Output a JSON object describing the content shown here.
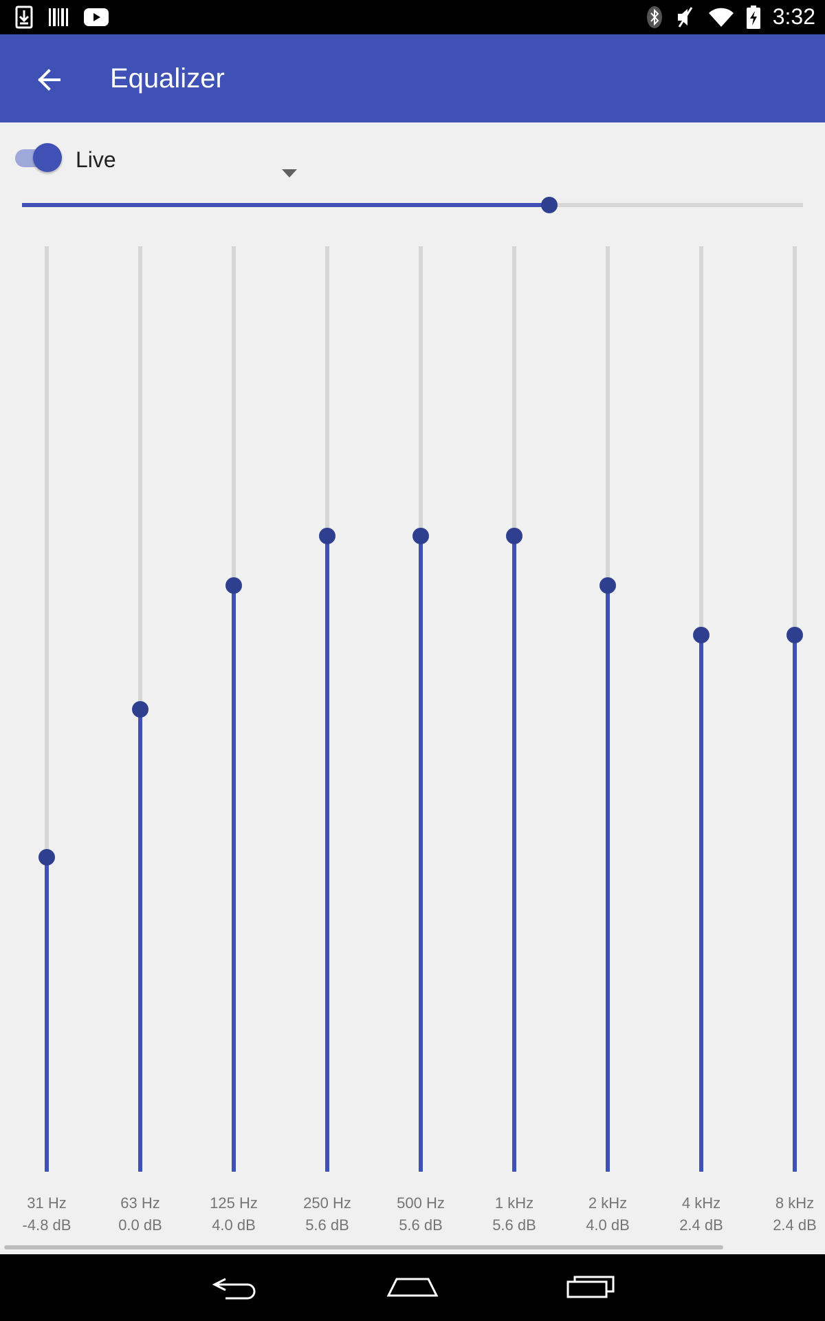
{
  "status_bar": {
    "time": "3:32",
    "left_icons": [
      "download-icon",
      "barcode-icon",
      "youtube-icon"
    ],
    "right_icons": [
      "bluetooth-icon",
      "mute-icon",
      "wifi-icon",
      "battery-charging-icon"
    ]
  },
  "app_bar": {
    "title": "Equalizer",
    "background": "#3f51b5"
  },
  "controls": {
    "enabled": true,
    "preset": "Live",
    "preamp_fraction": 0.675
  },
  "accent_color": "#3f51b5",
  "eq_range_db": [
    -15,
    15
  ],
  "bands": [
    {
      "freq": "31 Hz",
      "gain_label": "-4.8 dB",
      "gain": -4.8
    },
    {
      "freq": "63 Hz",
      "gain_label": "0.0 dB",
      "gain": 0.0
    },
    {
      "freq": "125 Hz",
      "gain_label": "4.0 dB",
      "gain": 4.0
    },
    {
      "freq": "250 Hz",
      "gain_label": "5.6 dB",
      "gain": 5.6
    },
    {
      "freq": "500 Hz",
      "gain_label": "5.6 dB",
      "gain": 5.6
    },
    {
      "freq": "1 kHz",
      "gain_label": "5.6 dB",
      "gain": 5.6
    },
    {
      "freq": "2 kHz",
      "gain_label": "4.0 dB",
      "gain": 4.0
    },
    {
      "freq": "4 kHz",
      "gain_label": "2.4 dB",
      "gain": 2.4
    },
    {
      "freq": "8 kHz",
      "gain_label": "2.4 dB",
      "gain": 2.4
    }
  ],
  "nav_bar": {
    "icons": [
      "back-nav-icon",
      "home-nav-icon",
      "recents-nav-icon"
    ]
  }
}
